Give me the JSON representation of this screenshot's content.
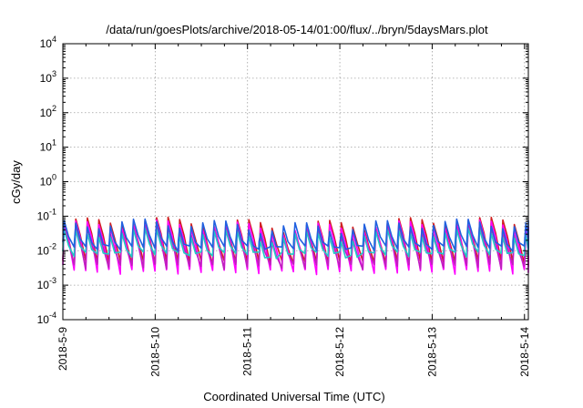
{
  "chart_data": {
    "type": "line",
    "title": "/data/run/goesPlots/archive/2018-05-14/01:00/flux/../bryn/5daysMars.plot",
    "xlabel": "Coordinated Universal Time (UTC)",
    "ylabel": "cGy/day",
    "yscale": "log",
    "ylim": [
      0.0001,
      10000
    ],
    "xlim": [
      "2018-05-09 00:00",
      "2018-05-14 01:00"
    ],
    "grid": true,
    "x_tick_labels": [
      "2018-5-9",
      "2018-5-10",
      "2018-5-11",
      "2018-5-12",
      "2018-5-13",
      "2018-5-14"
    ],
    "y_tick_labels": [
      {
        "base": "10",
        "exp": "-4"
      },
      {
        "base": "10",
        "exp": "-3"
      },
      {
        "base": "10",
        "exp": "-2"
      },
      {
        "base": "10",
        "exp": "-1"
      },
      {
        "base": "10",
        "exp": "0"
      },
      {
        "base": "10",
        "exp": "1"
      },
      {
        "base": "10",
        "exp": "2"
      },
      {
        "base": "10",
        "exp": "3"
      },
      {
        "base": "10",
        "exp": "4"
      }
    ],
    "series_style": {
      "period_hours": 3,
      "note_values": "sawtooth oscillation between minima and peaks (cGy/day)"
    },
    "series": [
      {
        "color": "#d02020",
        "peak": 0.085,
        "min": 0.0045
      },
      {
        "color": "#ff00ff",
        "peak": 0.07,
        "min": 0.0025
      },
      {
        "color": "#c020c0",
        "peak": 0.05,
        "min": 0.0035
      },
      {
        "color": "#20c8c8",
        "peak": 0.04,
        "min": 0.008
      },
      {
        "color": "#2060e0",
        "peak": 0.075,
        "min": 0.012
      }
    ]
  }
}
